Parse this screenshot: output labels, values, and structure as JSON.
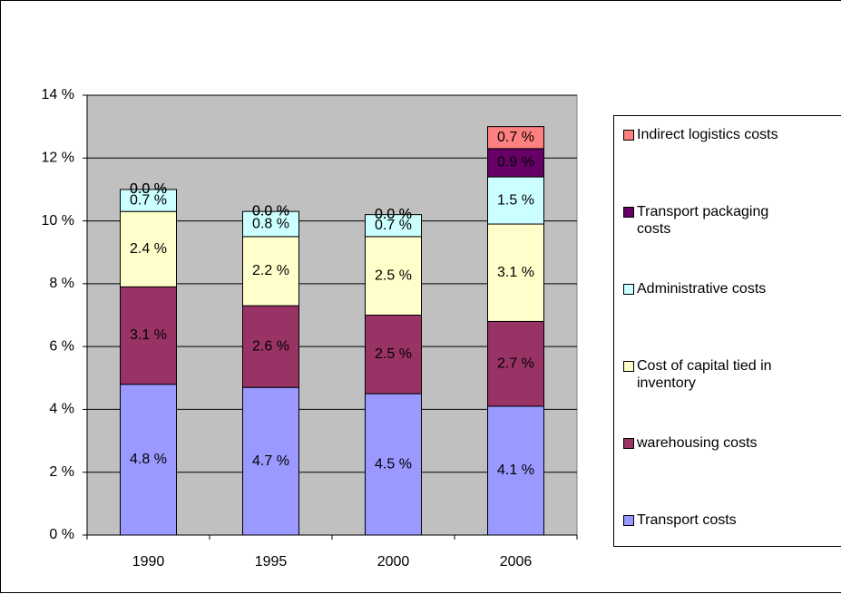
{
  "chart_data": {
    "type": "bar",
    "stacked": true,
    "categories": [
      "1990",
      "1995",
      "2000",
      "2006"
    ],
    "series": [
      {
        "name": "Transport costs",
        "color": "#9999ff",
        "values": [
          4.8,
          4.7,
          4.5,
          4.1
        ],
        "value_labels": [
          "4.8 %",
          "4.7 %",
          "4.5 %",
          "4.1 %"
        ]
      },
      {
        "name": "warehousing costs",
        "color": "#993366",
        "values": [
          3.1,
          2.6,
          2.5,
          2.7
        ],
        "value_labels": [
          "3.1 %",
          "2.6 %",
          "2.5 %",
          "2.7 %"
        ]
      },
      {
        "name": "Cost of capital tied in inventory",
        "color": "#ffffcc",
        "values": [
          2.4,
          2.2,
          2.5,
          3.1
        ],
        "value_labels": [
          "2.4 %",
          "2.2 %",
          "2.5 %",
          "3.1 %"
        ]
      },
      {
        "name": "Administrative costs",
        "color": "#ccffff",
        "values": [
          0.7,
          0.8,
          0.7,
          1.5
        ],
        "value_labels": [
          "0.7 %",
          "0.8 %",
          "0.7 %",
          "1.5 %"
        ]
      },
      {
        "name": "Transport packaging costs",
        "color": "#660066",
        "values": [
          0,
          0,
          0,
          0.9
        ],
        "value_labels": [
          "0.0 %",
          "0.0 %",
          "0.0 %",
          "0.9 %"
        ]
      },
      {
        "name": "Indirect logistics costs",
        "color": "#ff8080",
        "values": [
          0,
          0,
          0,
          0.7
        ],
        "value_labels": [
          "0.0 %",
          "0.0 %",
          "0.0 %",
          "0.7 %"
        ]
      }
    ],
    "ylim": [
      0,
      14
    ],
    "yticks": [
      {
        "value": 0,
        "label": "0 %"
      },
      {
        "value": 2,
        "label": "2 %"
      },
      {
        "value": 4,
        "label": "4 %"
      },
      {
        "value": 6,
        "label": "6 %"
      },
      {
        "value": 8,
        "label": "8 %"
      },
      {
        "value": 10,
        "label": "10 %"
      },
      {
        "value": 12,
        "label": "12 %"
      },
      {
        "value": 14,
        "label": "14 %"
      }
    ],
    "grid": true,
    "legend": "right",
    "plot_background": "#c0c0c0"
  }
}
